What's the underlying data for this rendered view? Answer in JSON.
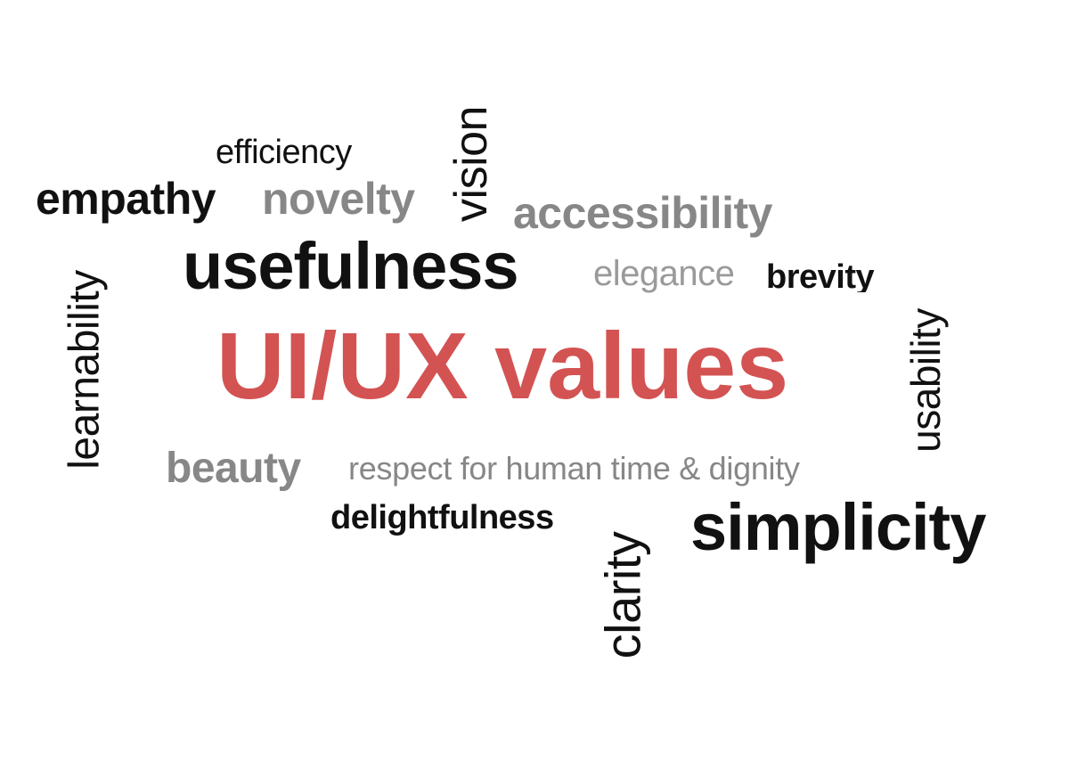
{
  "title": "UI/UX values",
  "words": {
    "efficiency": "efficiency",
    "empathy": "empathy",
    "novelty": "novelty",
    "vision": "vision",
    "accessibility": "accessibility",
    "usefulness": "usefulness",
    "elegance": "elegance",
    "brevity": "brevity",
    "learnability": "learnability",
    "usability": "usability",
    "beauty": "beauty",
    "respect": "respect for human time & dignity",
    "delightfulness": "delightfulness",
    "clarity": "clarity",
    "simplicity": "simplicity"
  },
  "colors": {
    "accent": "#d35352",
    "dark_text": "#111111",
    "gray_text": "#878787",
    "light_gray_text": "#9a9a9a",
    "background": "#ffffff"
  }
}
